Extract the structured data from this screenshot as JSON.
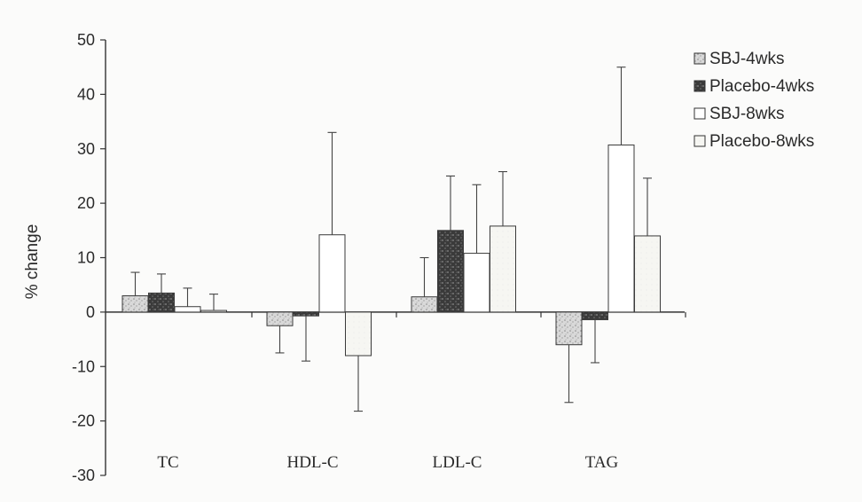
{
  "chart_data": {
    "type": "bar",
    "title": "",
    "xlabel": "",
    "ylabel": "% change",
    "ylim": [
      -30,
      50
    ],
    "yticks": [
      50,
      40,
      30,
      20,
      10,
      0,
      -10,
      -20,
      -30
    ],
    "ytick_labels": [
      "50",
      "40",
      "30",
      "20",
      "10",
      "0",
      "-10",
      "-20",
      "-30"
    ],
    "categories": [
      "TC",
      "HDL-C",
      "LDL-C",
      "TAG"
    ],
    "legend_position": "top-right",
    "grid": false,
    "series": [
      {
        "name": "SBJ-4wks",
        "values": [
          3.0,
          -2.5,
          2.8,
          -6.0
        ],
        "errors": [
          4.3,
          5.0,
          7.2,
          10.6
        ],
        "color": "#cfcfcf",
        "pattern": "speckle-light"
      },
      {
        "name": "Placebo-4wks",
        "values": [
          3.5,
          -0.7,
          15.0,
          -1.4
        ],
        "errors": [
          3.5,
          8.3,
          10.0,
          7.9
        ],
        "color": "#4a4a4a",
        "pattern": "speckle-dark"
      },
      {
        "name": "SBJ-8wks",
        "values": [
          1.0,
          14.2,
          10.8,
          30.7
        ],
        "errors": [
          3.4,
          18.8,
          12.6,
          14.3
        ],
        "color": "#ffffff",
        "pattern": "none"
      },
      {
        "name": "Placebo-8wks",
        "values": [
          0.3,
          -8.0,
          15.8,
          14.0
        ],
        "errors": [
          3.0,
          10.2,
          10.0,
          10.6
        ],
        "color": "#f4f4f0",
        "pattern": "faint"
      }
    ]
  }
}
